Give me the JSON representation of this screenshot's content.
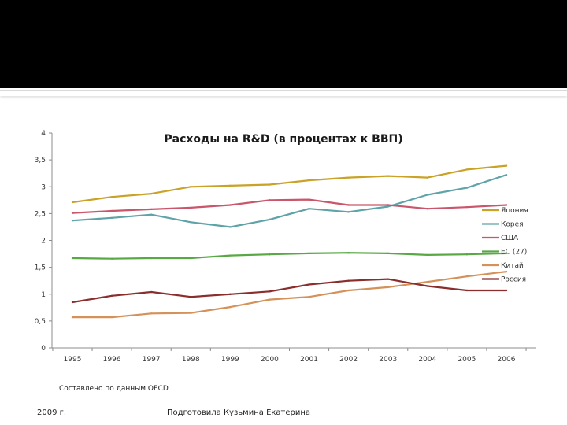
{
  "chart_data": {
    "type": "line",
    "title": "Расходы на R&D (в процентах к ВВП)",
    "xlabel": "",
    "ylabel": "",
    "ylim": [
      0,
      4
    ],
    "y_ticks": [
      "0",
      "0,5",
      "1",
      "1,5",
      "2",
      "2,5",
      "3",
      "3,5",
      "4"
    ],
    "y_tick_values": [
      0,
      0.5,
      1,
      1.5,
      2,
      2.5,
      3,
      3.5,
      4
    ],
    "categories": [
      "1995",
      "1996",
      "1997",
      "1998",
      "1999",
      "2000",
      "2001",
      "2002",
      "2003",
      "2004",
      "2005",
      "2006"
    ],
    "legend_position": "right",
    "series": [
      {
        "name": "Япония",
        "color": "#c9a227",
        "values": [
          2.71,
          2.81,
          2.87,
          3.0,
          3.02,
          3.04,
          3.12,
          3.17,
          3.2,
          3.17,
          3.32,
          3.39
        ]
      },
      {
        "name": "Корея",
        "color": "#5fa3a8",
        "values": [
          2.37,
          2.42,
          2.48,
          2.34,
          2.25,
          2.39,
          2.59,
          2.53,
          2.63,
          2.85,
          2.98,
          3.22
        ]
      },
      {
        "name": "США",
        "color": "#c9566b",
        "values": [
          2.51,
          2.55,
          2.58,
          2.61,
          2.66,
          2.75,
          2.76,
          2.66,
          2.66,
          2.59,
          2.62,
          2.66
        ]
      },
      {
        "name": "ЕС (27)",
        "color": "#58a845",
        "values": [
          1.67,
          1.66,
          1.67,
          1.67,
          1.72,
          1.74,
          1.76,
          1.77,
          1.76,
          1.73,
          1.74,
          1.76
        ]
      },
      {
        "name": "Китай",
        "color": "#d4925a",
        "values": [
          0.57,
          0.57,
          0.64,
          0.65,
          0.76,
          0.9,
          0.95,
          1.07,
          1.13,
          1.23,
          1.33,
          1.42
        ]
      },
      {
        "name": "Россия",
        "color": "#8b2d2d",
        "values": [
          0.85,
          0.97,
          1.04,
          0.95,
          1.0,
          1.05,
          1.18,
          1.25,
          1.28,
          1.15,
          1.07,
          1.07
        ]
      }
    ]
  },
  "footer": {
    "source": "Составлено по данным OECD",
    "year": "2009 г.",
    "author": "Подготовила Кузьмина Екатерина"
  }
}
